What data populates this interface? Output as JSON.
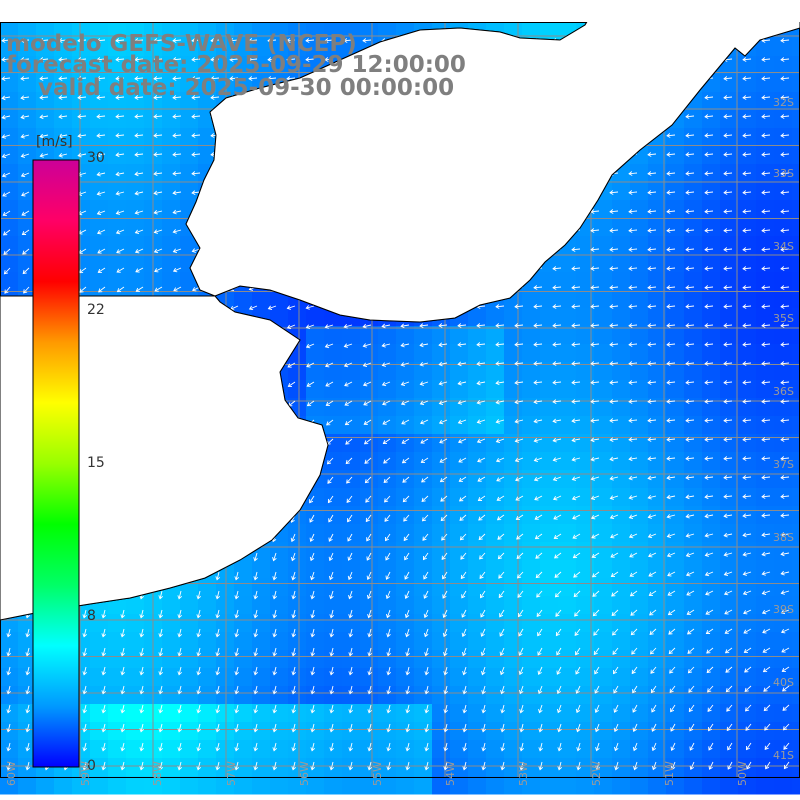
{
  "title": {
    "line1": "modelo GEFS-WAVE (NCEP)",
    "line2": "forecast date: 2025-09-29 12:00:00",
    "line3": "    valid date: 2025-09-30 00:00:00"
  },
  "colorbar": {
    "unit": "[m/s]",
    "ticks": [
      "30",
      "22",
      "15",
      "8",
      "0"
    ],
    "range": [
      0,
      30
    ],
    "colors": [
      "#0000ff",
      "#0099ff",
      "#00ffff",
      "#00ff66",
      "#00ff00",
      "#99ff00",
      "#ffff00",
      "#ff9900",
      "#ff0000",
      "#ff0066",
      "#cc0099"
    ]
  },
  "axes": {
    "lat_labels": [
      "32S",
      "33S",
      "34S",
      "35S",
      "36S",
      "37S",
      "38S",
      "39S",
      "40S",
      "41S"
    ],
    "lon_labels": [
      "60W",
      "59W",
      "58W",
      "57W",
      "56W",
      "55W",
      "54W",
      "53W",
      "52W",
      "51W",
      "50W"
    ]
  },
  "colors": {
    "land": "#ffffff",
    "coast": "#000000",
    "grid": "#8c8c8c",
    "vectors": "#ffffff",
    "title": "#7f7f7f"
  }
}
